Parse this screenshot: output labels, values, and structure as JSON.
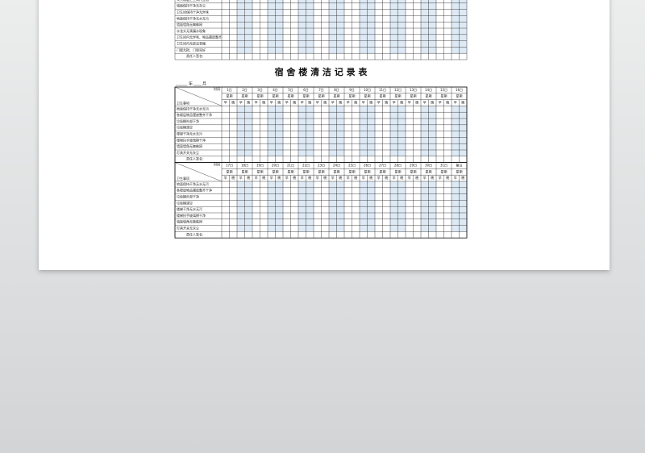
{
  "document": {
    "top_table": {
      "rows": [
        "公共楼层卫生保持整洁",
        "墙面保持干净无灰尘",
        "卫生间保持干净无异味",
        "地面保持干净无水无污",
        "墙面墙角无蜘蛛网",
        "水龙头无滴漏水现象",
        "卫生间内无异味、物品摆放整齐",
        "卫生间内无蚊虫苍蝇",
        "门窗无损、门锁完好"
      ],
      "signature": "责任人签名:"
    },
    "title": "宿 舍 楼 清 洁 记 录 表",
    "date": {
      "year": "年",
      "month": "月"
    },
    "record_table": {
      "corner_time": "时间",
      "corner_item": "卫生事项",
      "weekday": "星期",
      "shifts": [
        "早",
        "晚"
      ],
      "blocks": [
        {
          "days": [
            "1日",
            "2日",
            "3日",
            "4日",
            "5日",
            "6日",
            "7日",
            "8日",
            "9日",
            "10日",
            "11日",
            "12日",
            "13日",
            "14日",
            "15日",
            "16日"
          ]
        },
        {
          "days": [
            "17日",
            "18日",
            "19日",
            "20日",
            "21日",
            "22日",
            "23日",
            "24日",
            "25日",
            "26日",
            "27日",
            "28日",
            "29日",
            "30日",
            "31日",
            "备注"
          ]
        }
      ],
      "rows": [
        "地面保持干净无水无污",
        "各楼层物品摆放整齐干净",
        "垃圾桶外部干净",
        "垃圾桶清空",
        "楼梯干净无水无污",
        "楼梯扶手玻璃擦干净",
        "墙面墙角无蜘蛛网",
        "灯具开关无灰尘"
      ],
      "signature": "责任人签名:"
    }
  }
}
